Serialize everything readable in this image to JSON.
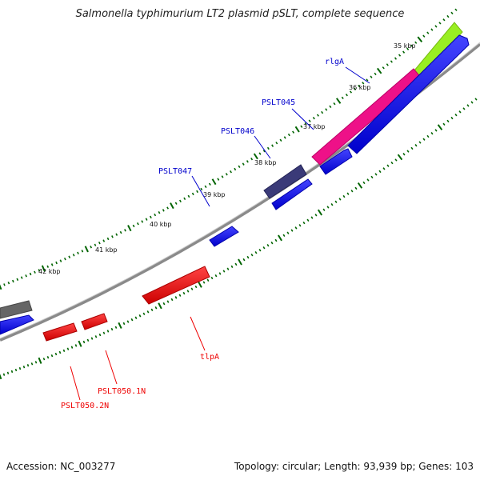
{
  "title": "Salmonella typhimurium LT2 plasmid pSLT, complete sequence",
  "footer": {
    "accession": "Accession: NC_003277",
    "summary": "Topology: circular; Length: 93,939 bp; Genes: 103"
  },
  "colors": {
    "forward": "#0000ee",
    "reverse": "#ee0000",
    "tick": "#006400",
    "backbone": "#808080",
    "pink": "#ee1188",
    "lime": "#99ee22",
    "slate": "#3a3a78",
    "grey": "#666666"
  },
  "scale_labels": [
    "35 kbp",
    "36 kbp",
    "37 kbp",
    "38 kbp",
    "39 kbp",
    "40 kbp",
    "41 kbp",
    "42 kbp"
  ],
  "labels": {
    "rlgA": "rlgA",
    "PSLT045": "PSLT045",
    "PSLT046": "PSLT046",
    "PSLT047": "PSLT047",
    "tlpA": "tlpA",
    "PSLT050_1N": "PSLT050.1N",
    "PSLT050_2N": "PSLT050.2N"
  }
}
